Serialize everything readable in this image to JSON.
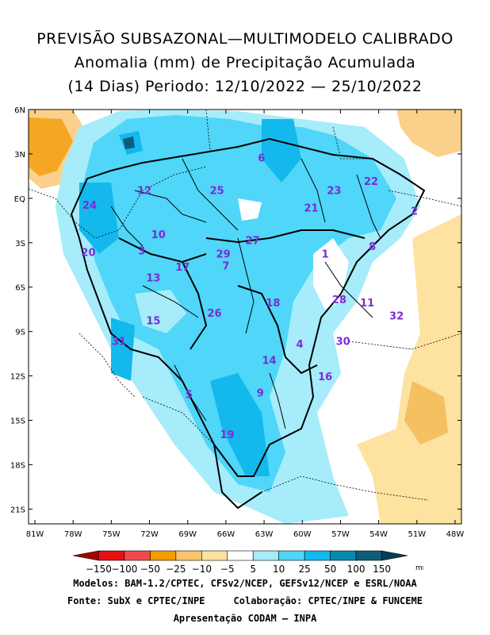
{
  "title": {
    "line1": "PREVISÃO SUBSAZONAL—MULTIMODELO CALIBRADO",
    "line2": "Anomalia (mm) de Precipitação Acumulada",
    "line3": "(14 Dias) Periodo: 12/10/2022 — 25/10/2022"
  },
  "map": {
    "lat_ticks": [
      "6N",
      "3N",
      "EQ",
      "3S",
      "6S",
      "9S",
      "12S",
      "15S",
      "18S",
      "21S"
    ],
    "lon_ticks": [
      "81W",
      "78W",
      "75W",
      "72W",
      "69W",
      "66W",
      "63W",
      "60W",
      "57W",
      "54W",
      "51W",
      "48W"
    ],
    "lat_range": [
      6,
      -22
    ],
    "lon_range": [
      -81.5,
      -47.5
    ],
    "basins": [
      {
        "label": "1",
        "lon": -58.2,
        "lat": -4.0
      },
      {
        "label": "2",
        "lon": -51.2,
        "lat": -1.1
      },
      {
        "label": "3",
        "lon": -72.6,
        "lat": -3.8
      },
      {
        "label": "4",
        "lon": -60.2,
        "lat": -10.1
      },
      {
        "label": "5",
        "lon": -68.9,
        "lat": -13.5
      },
      {
        "label": "6",
        "lon": -63.2,
        "lat": 2.5
      },
      {
        "label": "7",
        "lon": -66.0,
        "lat": -4.8
      },
      {
        "label": "8",
        "lon": -54.5,
        "lat": -3.5
      },
      {
        "label": "9",
        "lon": -63.3,
        "lat": -13.4
      },
      {
        "label": "10",
        "lon": -71.3,
        "lat": -2.7
      },
      {
        "label": "11",
        "lon": -54.9,
        "lat": -7.3
      },
      {
        "label": "12",
        "lon": -72.4,
        "lat": 0.3
      },
      {
        "label": "13",
        "lon": -71.7,
        "lat": -5.6
      },
      {
        "label": "14",
        "lon": -62.6,
        "lat": -11.2
      },
      {
        "label": "15",
        "lon": -71.7,
        "lat": -8.5
      },
      {
        "label": "16",
        "lon": -58.2,
        "lat": -12.3
      },
      {
        "label": "17",
        "lon": -69.4,
        "lat": -4.9
      },
      {
        "label": "18",
        "lon": -62.3,
        "lat": -7.3
      },
      {
        "label": "19",
        "lon": -65.9,
        "lat": -16.2
      },
      {
        "label": "20",
        "lon": -76.8,
        "lat": -3.9
      },
      {
        "label": "21",
        "lon": -59.3,
        "lat": -0.9
      },
      {
        "label": "22",
        "lon": -54.6,
        "lat": 0.9
      },
      {
        "label": "23",
        "lon": -57.5,
        "lat": 0.3
      },
      {
        "label": "24",
        "lon": -76.7,
        "lat": -0.7
      },
      {
        "label": "25",
        "lon": -66.7,
        "lat": 0.3
      },
      {
        "label": "26",
        "lon": -66.9,
        "lat": -8.0
      },
      {
        "label": "27",
        "lon": -63.9,
        "lat": -3.1
      },
      {
        "label": "28",
        "lon": -57.1,
        "lat": -7.1
      },
      {
        "label": "29",
        "lon": -66.2,
        "lat": -4.0
      },
      {
        "label": "30",
        "lon": -56.8,
        "lat": -9.9
      },
      {
        "label": "31",
        "lon": -74.4,
        "lat": -9.9
      },
      {
        "label": "32",
        "lon": -52.6,
        "lat": -8.2
      }
    ]
  },
  "legend": {
    "labels": [
      "-150",
      "-100",
      "-50",
      "-25",
      "-10",
      "-5",
      "5",
      "10",
      "25",
      "50",
      "100",
      "150"
    ],
    "unit": "mm",
    "colors": [
      "#a50000",
      "#e81010",
      "#f04a4a",
      "#f59c00",
      "#fbc46a",
      "#fde2a0",
      "#ffffff",
      "#a6ecfb",
      "#4fd6f8",
      "#13b9ec",
      "#078ab0",
      "#0f5c7a",
      "#063d57"
    ]
  },
  "footer": {
    "line1": "Modelos: BAM-1.2/CPTEC, CFSv2/NCEP, GEFSv12/NCEP e ESRL/NOAA",
    "line2": "Fonte: SubX e CPTEC/INPE     Colaboração: CPTEC/INPE & FUNCEME",
    "line3": "Apresentação CODAM — INPA"
  },
  "colors": {
    "basin_label": "#7b2cd6",
    "light_blue": "#a6ecfb",
    "mid_blue": "#4fd6f8",
    "dark_blue": "#13b9ec",
    "deep_blue": "#0f5c7a",
    "orange": "#f5a623",
    "light_orange": "#fbd08a"
  }
}
